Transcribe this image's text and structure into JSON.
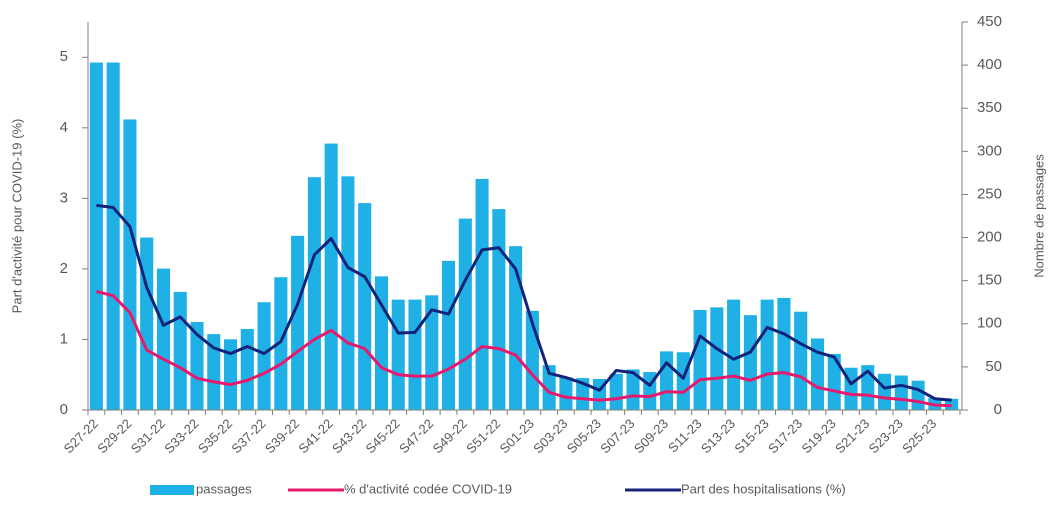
{
  "chart_data": {
    "type": "bar",
    "categories": [
      "S27-22",
      null,
      "S29-22",
      null,
      "S31-22",
      null,
      "S33-22",
      null,
      "S35-22",
      null,
      "S37-22",
      null,
      "S39-22",
      null,
      "S41-22",
      null,
      "S43-22",
      null,
      "S45-22",
      null,
      "S47-22",
      null,
      "S49-22",
      null,
      "S51-22",
      null,
      "S01-23",
      null,
      "S03-23",
      null,
      "S05-23",
      null,
      "S07-23",
      null,
      "S09-23",
      null,
      "S11-23",
      null,
      "S13-23",
      null,
      "S15-23",
      null,
      "S17-23",
      null,
      "S19-23",
      null,
      "S21-23",
      null,
      "S23-23",
      null,
      "S25-23",
      null
    ],
    "y_label": "Part d'activité pour COVID-19 (%)",
    "y2_label": "Nombre de passages",
    "ylim": [
      0,
      5.5
    ],
    "yticks": [
      0,
      1,
      2,
      3,
      4,
      5
    ],
    "y2lim": [
      0,
      450
    ],
    "y2ticks": [
      0,
      50,
      100,
      150,
      200,
      250,
      300,
      350,
      400,
      450
    ],
    "legend": "bottom",
    "series": [
      {
        "name": "passages",
        "type": "bar",
        "axis": "y2",
        "color": "#1fb1e6",
        "values": [
          403,
          403,
          337,
          200,
          164,
          137,
          102,
          88,
          82,
          94,
          125,
          154,
          202,
          270,
          309,
          271,
          240,
          155,
          128,
          128,
          133,
          173,
          222,
          268,
          233,
          190,
          115,
          52,
          38,
          37,
          36,
          42,
          47,
          44,
          68,
          67,
          116,
          119,
          128,
          110,
          128,
          130,
          114,
          83,
          65,
          49,
          52,
          42,
          40,
          34,
          14,
          13
        ]
      },
      {
        "name": "% d'activité codée COVID-19",
        "type": "line",
        "axis": "y",
        "color": "#e8186d",
        "values": [
          1.68,
          1.62,
          1.38,
          0.85,
          0.72,
          0.6,
          0.45,
          0.4,
          0.36,
          0.42,
          0.52,
          0.65,
          0.83,
          1.0,
          1.13,
          0.95,
          0.87,
          0.6,
          0.5,
          0.48,
          0.48,
          0.58,
          0.72,
          0.9,
          0.87,
          0.78,
          0.5,
          0.25,
          0.18,
          0.16,
          0.14,
          0.16,
          0.2,
          0.19,
          0.26,
          0.25,
          0.43,
          0.45,
          0.48,
          0.42,
          0.51,
          0.53,
          0.47,
          0.32,
          0.27,
          0.22,
          0.21,
          0.17,
          0.15,
          0.12,
          0.07,
          0.06
        ]
      },
      {
        "name": "Part des hospitalisations (%)",
        "type": "line",
        "axis": "y",
        "color": "#13237a",
        "values": [
          2.9,
          2.87,
          2.6,
          1.74,
          1.2,
          1.32,
          1.07,
          0.88,
          0.8,
          0.9,
          0.8,
          0.97,
          1.5,
          2.2,
          2.43,
          2.02,
          1.89,
          1.49,
          1.09,
          1.1,
          1.42,
          1.36,
          1.84,
          2.27,
          2.3,
          2.0,
          1.23,
          0.52,
          0.46,
          0.38,
          0.28,
          0.56,
          0.53,
          0.35,
          0.67,
          0.45,
          1.05,
          0.87,
          0.72,
          0.82,
          1.17,
          1.08,
          0.94,
          0.82,
          0.75,
          0.37,
          0.55,
          0.31,
          0.35,
          0.29,
          0.16,
          0.14
        ]
      }
    ]
  }
}
